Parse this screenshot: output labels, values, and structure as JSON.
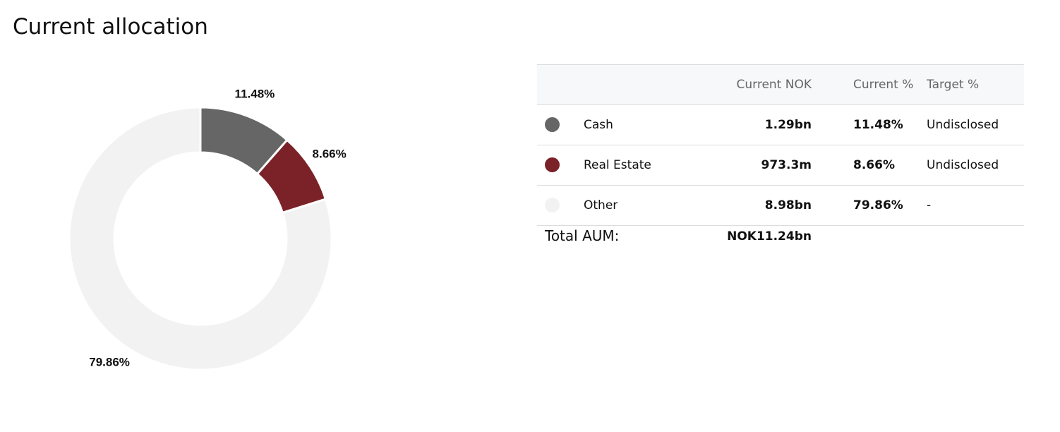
{
  "title": "Current allocation",
  "chart_data": {
    "type": "donut",
    "categories": [
      "Cash",
      "Real Estate",
      "Other"
    ],
    "values": [
      11.48,
      8.66,
      79.86
    ],
    "value_labels": [
      "11.48%",
      "8.66%",
      "79.86%"
    ],
    "colors": [
      "#666666",
      "#7b2228",
      "#f2f2f2"
    ]
  },
  "table": {
    "columns": [
      "Current NOK",
      "Current %",
      "Target %"
    ],
    "rows": [
      [
        "Cash",
        "1.29bn",
        "11.48%",
        "Undisclosed"
      ],
      [
        "Real Estate",
        "973.3m",
        "8.66%",
        "Undisclosed"
      ],
      [
        "Other",
        "8.98bn",
        "79.86%",
        "-"
      ]
    ],
    "total": {
      "label": "Total AUM:",
      "value": "NOK11.24bn"
    }
  }
}
